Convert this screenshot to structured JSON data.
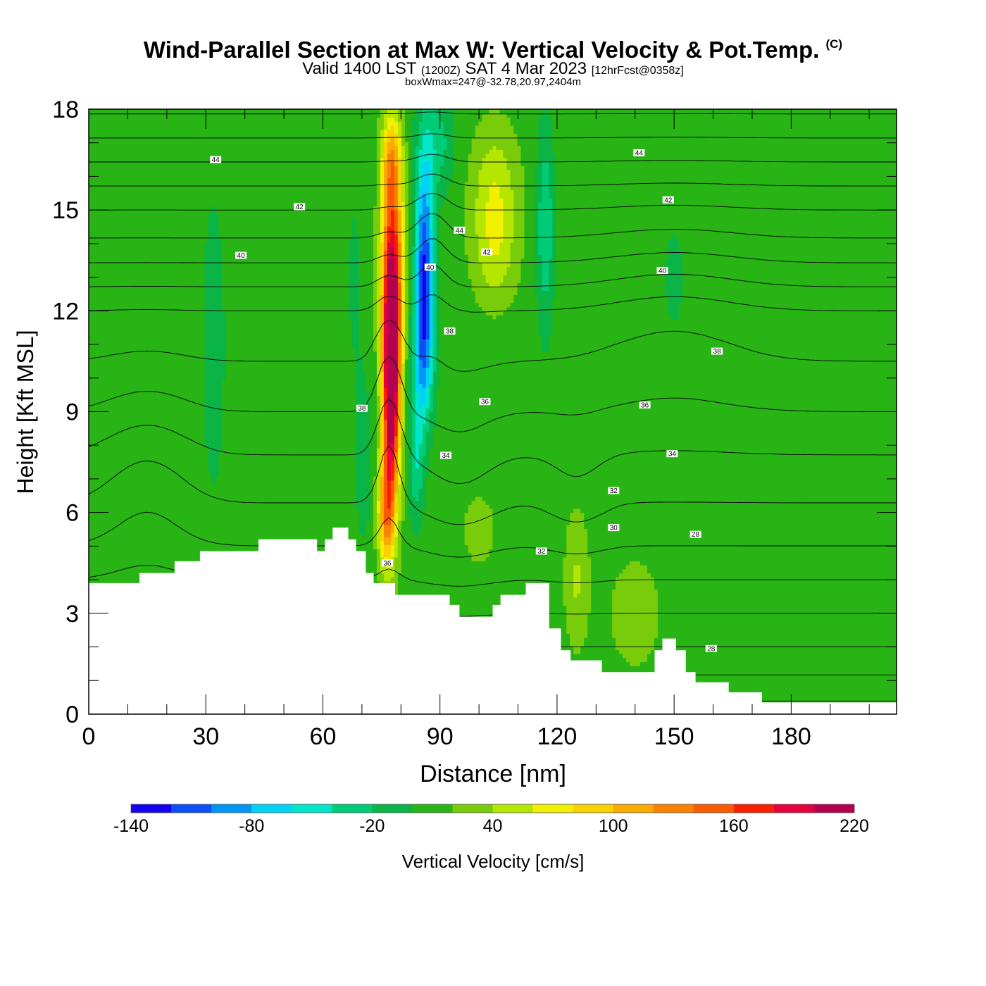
{
  "header": {
    "title": "Wind-Parallel Section at Max W: Vertical Velocity & Pot.Temp.",
    "copyright": "(C)",
    "valid_main": "Valid 1400 LST",
    "valid_zulu": "(1200Z)",
    "valid_date": "SAT 4 Mar 2023",
    "forecast": "[12hrFcst@0358z]",
    "box_info": "boxWmax=247@-32.78,20.97,2404m"
  },
  "colors": {
    "scale": [
      "#1400f0",
      "#0a50f5",
      "#0096f5",
      "#00d2fa",
      "#00e6c8",
      "#00cc78",
      "#0ab446",
      "#28b414",
      "#78cc0a",
      "#b4e600",
      "#f0f000",
      "#fad200",
      "#faaa00",
      "#fa8200",
      "#fa5a00",
      "#fa1e00",
      "#e6003c",
      "#b40050"
    ],
    "terrain": "#ffffff",
    "contour": "#000000"
  },
  "chart_data": {
    "type": "heatmap",
    "xlabel": "Distance [nm]",
    "ylabel": "Height [Kft MSL]",
    "xlim": [
      0,
      207
    ],
    "ylim": [
      0,
      18
    ],
    "xticks": [
      0,
      30,
      60,
      90,
      120,
      150,
      180
    ],
    "yticks": [
      0,
      3,
      6,
      9,
      12,
      15,
      18
    ],
    "colorbar": {
      "label": "Vertical Velocity [cm/s]",
      "min": -140,
      "step": 20,
      "tick_labels": [
        "-140",
        "-80",
        "-20",
        "40",
        "100",
        "160",
        "220"
      ],
      "tick_values": [
        -140,
        -80,
        -20,
        40,
        100,
        160,
        220
      ]
    },
    "background_w": 10,
    "w_features": [
      {
        "x": 77.5,
        "y": 10.0,
        "sx": 2.2,
        "sy": 3.8,
        "w": 240
      },
      {
        "x": 78.0,
        "y": 13.5,
        "sx": 3.0,
        "sy": 3.0,
        "w": 110
      },
      {
        "x": 77.5,
        "y": 16.5,
        "sx": 2.5,
        "sy": 1.4,
        "w": 75
      },
      {
        "x": 76.0,
        "y": 6.0,
        "sx": 2.0,
        "sy": 1.6,
        "w": 90
      },
      {
        "x": 86.0,
        "y": 13.5,
        "sx": 2.4,
        "sy": 3.0,
        "w": -125
      },
      {
        "x": 85.5,
        "y": 10.5,
        "sx": 2.8,
        "sy": 2.0,
        "w": -70
      },
      {
        "x": 84.0,
        "y": 7.5,
        "sx": 2.0,
        "sy": 1.8,
        "w": -45
      },
      {
        "x": 89.0,
        "y": 17.0,
        "sx": 4.5,
        "sy": 1.5,
        "w": -40
      },
      {
        "x": 70.5,
        "y": 7.5,
        "sx": 2.2,
        "sy": 2.5,
        "w": -22
      },
      {
        "x": 104.0,
        "y": 15.5,
        "sx": 6.0,
        "sy": 2.0,
        "w": 48
      },
      {
        "x": 104.0,
        "y": 13.5,
        "sx": 5.5,
        "sy": 1.5,
        "w": 30
      },
      {
        "x": 117.0,
        "y": 14.5,
        "sx": 2.2,
        "sy": 3.0,
        "w": -48
      },
      {
        "x": 125.0,
        "y": 4.0,
        "sx": 3.0,
        "sy": 2.0,
        "w": 32
      },
      {
        "x": 100.0,
        "y": 5.5,
        "sx": 6.0,
        "sy": 1.5,
        "w": 15
      },
      {
        "x": 32.0,
        "y": 11.0,
        "sx": 4.0,
        "sy": 6.0,
        "w": -16
      },
      {
        "x": 68.0,
        "y": 13.0,
        "sx": 3.0,
        "sy": 4.0,
        "w": -12
      },
      {
        "x": 150.0,
        "y": 13.0,
        "sx": 5.0,
        "sy": 3.0,
        "w": -12
      },
      {
        "x": 140.0,
        "y": 3.0,
        "sx": 8.0,
        "sy": 2.0,
        "w": 18
      },
      {
        "x": 195.0,
        "y": 6.0,
        "sx": 5.0,
        "sy": 3.0,
        "w": -10
      }
    ],
    "terrain_profile": [
      [
        0,
        3.9
      ],
      [
        13,
        3.9
      ],
      [
        13,
        4.2
      ],
      [
        22,
        4.2
      ],
      [
        22,
        4.55
      ],
      [
        28.5,
        4.55
      ],
      [
        28.5,
        4.85
      ],
      [
        43.5,
        4.85
      ],
      [
        43.5,
        5.2
      ],
      [
        58.5,
        5.2
      ],
      [
        58.5,
        4.85
      ],
      [
        60.5,
        4.85
      ],
      [
        60.5,
        5.2
      ],
      [
        62.5,
        5.2
      ],
      [
        62.5,
        5.55
      ],
      [
        66.5,
        5.55
      ],
      [
        66.5,
        5.2
      ],
      [
        68.5,
        5.2
      ],
      [
        68.5,
        4.85
      ],
      [
        71,
        4.85
      ],
      [
        71,
        4.2
      ],
      [
        73,
        4.2
      ],
      [
        73,
        3.9
      ],
      [
        78.5,
        3.9
      ],
      [
        78.5,
        3.55
      ],
      [
        92.5,
        3.55
      ],
      [
        92.5,
        3.25
      ],
      [
        95,
        3.25
      ],
      [
        95,
        2.9
      ],
      [
        103.5,
        2.9
      ],
      [
        103.5,
        3.25
      ],
      [
        105.5,
        3.25
      ],
      [
        105.5,
        3.55
      ],
      [
        112,
        3.55
      ],
      [
        112,
        3.9
      ],
      [
        118,
        3.9
      ],
      [
        118,
        2.55
      ],
      [
        121,
        2.55
      ],
      [
        121,
        1.9
      ],
      [
        123.5,
        1.9
      ],
      [
        123.5,
        1.6
      ],
      [
        131.5,
        1.6
      ],
      [
        131.5,
        1.25
      ],
      [
        145,
        1.25
      ],
      [
        145,
        1.9
      ],
      [
        147,
        1.9
      ],
      [
        147,
        2.25
      ],
      [
        150.5,
        2.25
      ],
      [
        150.5,
        1.9
      ],
      [
        153,
        1.9
      ],
      [
        153,
        1.25
      ],
      [
        155.5,
        1.25
      ],
      [
        155.5,
        0.95
      ],
      [
        164,
        0.95
      ],
      [
        164,
        0.65
      ],
      [
        172.5,
        0.65
      ],
      [
        172.5,
        0.35
      ],
      [
        207,
        0.35
      ]
    ],
    "theta_contour_values": [
      27,
      28,
      29,
      30,
      31,
      32,
      33,
      34,
      35,
      36,
      37,
      38,
      39,
      40,
      41,
      42,
      43,
      44,
      45,
      46
    ],
    "theta_labels": [
      {
        "x": 32.5,
        "y": 16.5,
        "text": "44"
      },
      {
        "x": 54,
        "y": 15.1,
        "text": "42"
      },
      {
        "x": 39,
        "y": 13.65,
        "text": "40"
      },
      {
        "x": 141,
        "y": 16.7,
        "text": "44"
      },
      {
        "x": 148.5,
        "y": 15.3,
        "text": "42"
      },
      {
        "x": 147,
        "y": 13.2,
        "text": "40"
      },
      {
        "x": 95,
        "y": 14.4,
        "text": "44"
      },
      {
        "x": 102,
        "y": 13.75,
        "text": "42"
      },
      {
        "x": 87.5,
        "y": 13.3,
        "text": "40"
      },
      {
        "x": 92.5,
        "y": 11.4,
        "text": "38"
      },
      {
        "x": 101.5,
        "y": 9.3,
        "text": "36"
      },
      {
        "x": 70,
        "y": 9.1,
        "text": "38"
      },
      {
        "x": 91.5,
        "y": 7.7,
        "text": "34"
      },
      {
        "x": 161,
        "y": 10.8,
        "text": "38"
      },
      {
        "x": 142.5,
        "y": 9.2,
        "text": "36"
      },
      {
        "x": 149.5,
        "y": 7.75,
        "text": "34"
      },
      {
        "x": 134.5,
        "y": 6.65,
        "text": "32"
      },
      {
        "x": 134.5,
        "y": 5.55,
        "text": "30"
      },
      {
        "x": 155.5,
        "y": 5.35,
        "text": "28"
      },
      {
        "x": 116,
        "y": 4.85,
        "text": "32"
      },
      {
        "x": 76.5,
        "y": 4.5,
        "text": "36"
      },
      {
        "x": 159.5,
        "y": 1.95,
        "text": "28"
      }
    ]
  }
}
